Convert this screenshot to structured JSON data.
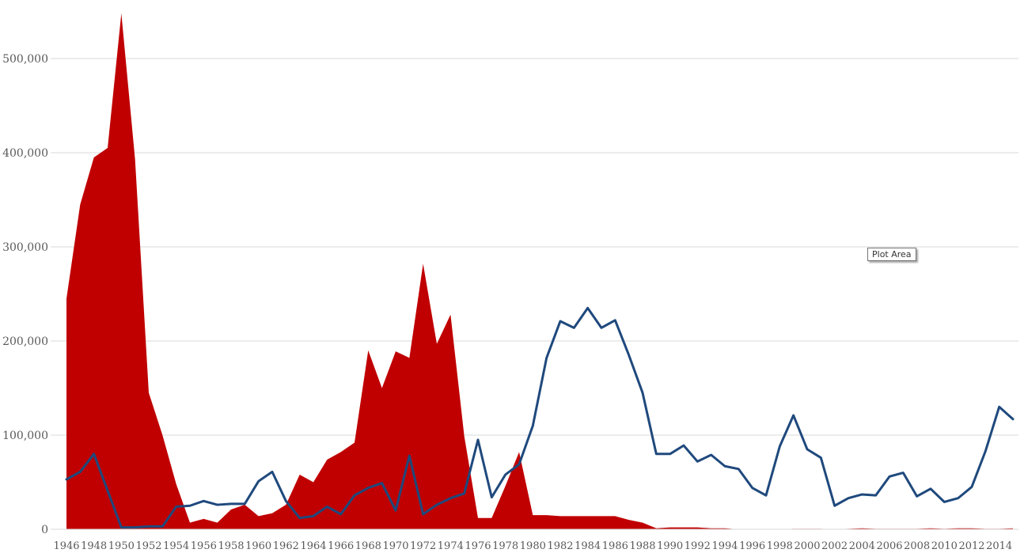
{
  "chart_data": {
    "type": "area",
    "x": [
      1946,
      1947,
      1948,
      1949,
      1950,
      1951,
      1952,
      1953,
      1954,
      1955,
      1956,
      1957,
      1958,
      1959,
      1960,
      1961,
      1962,
      1963,
      1964,
      1965,
      1966,
      1967,
      1968,
      1969,
      1970,
      1971,
      1972,
      1973,
      1974,
      1975,
      1976,
      1977,
      1978,
      1979,
      1980,
      1981,
      1982,
      1983,
      1984,
      1985,
      1986,
      1987,
      1988,
      1989,
      1990,
      1991,
      1992,
      1993,
      1994,
      1995,
      1996,
      1997,
      1998,
      1999,
      2000,
      2001,
      2002,
      2003,
      2004,
      2005,
      2006,
      2007,
      2008,
      2009,
      2010,
      2011,
      2012,
      2013,
      2014,
      2015
    ],
    "x_tick_labels": [
      "1946",
      "1948",
      "1950",
      "1952",
      "1954",
      "1956",
      "1958",
      "1960",
      "1962",
      "1964",
      "1966",
      "1968",
      "1970",
      "1972",
      "1974",
      "1976",
      "1978",
      "1980",
      "1982",
      "1984",
      "1986",
      "1988",
      "1990",
      "1992",
      "1994",
      "1996",
      "1998",
      "2000",
      "2002",
      "2004",
      "2006",
      "2008",
      "2010",
      "2012",
      "2014"
    ],
    "y_tick_labels": [
      "0",
      "100,000",
      "200,000",
      "300,000",
      "400,000",
      "500,000"
    ],
    "ylim": [
      0,
      550000
    ],
    "grid": true,
    "legend": "none",
    "series": [
      {
        "type": "area",
        "color": "#c00000",
        "values": [
          245000,
          345000,
          395000,
          405000,
          548000,
          393000,
          145000,
          100000,
          48000,
          7000,
          11000,
          7000,
          21000,
          26000,
          14000,
          17000,
          26000,
          58000,
          50000,
          74000,
          82000,
          92000,
          190000,
          150000,
          189000,
          182000,
          282000,
          197000,
          228000,
          99000,
          12000,
          12000,
          46000,
          82000,
          15000,
          15000,
          14000,
          14000,
          14000,
          14000,
          14000,
          10000,
          7000,
          1000,
          2000,
          2000,
          2000,
          1000,
          1000,
          0,
          0,
          0,
          0,
          500,
          500,
          500,
          0,
          500,
          1000,
          500,
          500,
          500,
          500,
          1000,
          500,
          1000,
          1000,
          500,
          500,
          1000
        ]
      },
      {
        "type": "line",
        "color": "#1f497d",
        "values": [
          53000,
          61000,
          80000,
          41000,
          2000,
          2000,
          3000,
          3000,
          24000,
          25000,
          30000,
          26000,
          27000,
          27000,
          51000,
          61000,
          30000,
          12000,
          14000,
          24000,
          16000,
          36000,
          44000,
          49000,
          20000,
          78000,
          16000,
          26000,
          33000,
          38000,
          95000,
          34000,
          58000,
          69000,
          110000,
          182000,
          221000,
          214000,
          235000,
          214000,
          222000,
          185000,
          145000,
          80000,
          80000,
          89000,
          72000,
          79000,
          67000,
          64000,
          44000,
          36000,
          88000,
          121000,
          85000,
          76000,
          25000,
          33000,
          37000,
          36000,
          56000,
          60000,
          35000,
          43000,
          29000,
          33000,
          45000,
          83000,
          130000,
          117000
        ]
      }
    ]
  },
  "tooltip": {
    "label": "Plot Area"
  }
}
